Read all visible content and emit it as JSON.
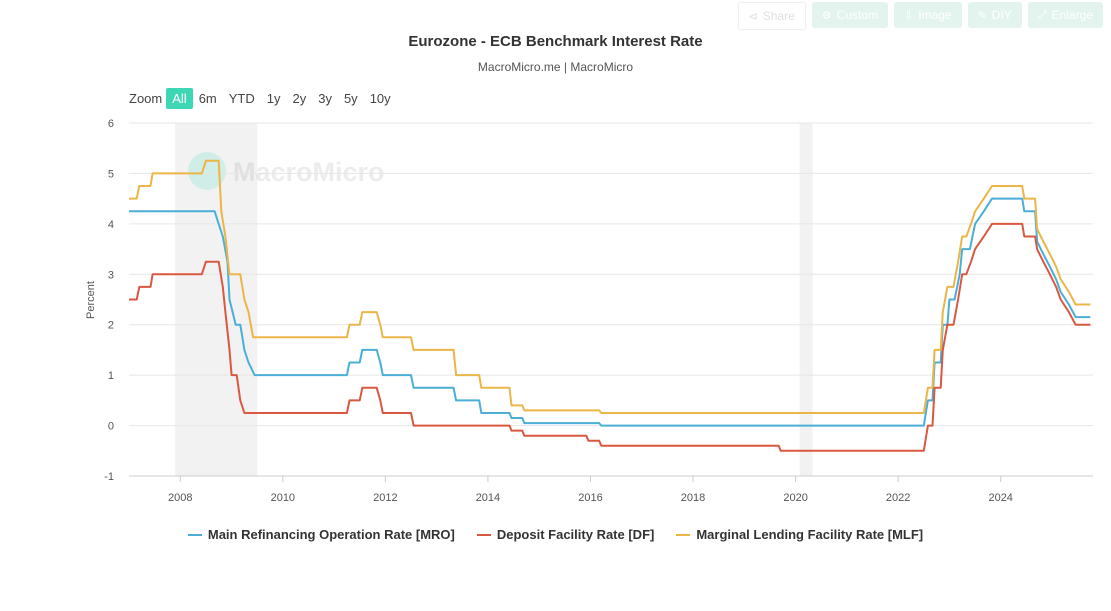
{
  "toolbar": {
    "share": "Share",
    "custom": "Custom",
    "image": "Image",
    "diy": "DIY",
    "enlarge": "Enlarge"
  },
  "zoom": {
    "label": "Zoom",
    "options": [
      "All",
      "6m",
      "YTD",
      "1y",
      "2y",
      "3y",
      "5y",
      "10y"
    ],
    "selected": "All"
  },
  "watermark": "MacroMicro",
  "colors": {
    "mro": "#4aaed6",
    "df": "#d95840",
    "mlf": "#ecb548",
    "recession": "#f2f2f2",
    "accent": "#3fd6b6"
  },
  "chart_data": {
    "type": "line",
    "title": "Eurozone - ECB Benchmark Interest Rate",
    "subtitle": "MacroMicro.me | MacroMicro",
    "ylabel": "Percent",
    "xlabel": "",
    "ylim": [
      -1,
      6
    ],
    "xlim": [
      2007.0,
      2025.8
    ],
    "yticks": [
      "6",
      "5",
      "4",
      "3",
      "2",
      "1",
      "0",
      "-1"
    ],
    "xticks": [
      "2008",
      "2010",
      "2012",
      "2014",
      "2016",
      "2018",
      "2020",
      "2022",
      "2024"
    ],
    "grid": true,
    "legend_position": "bottom",
    "shaded_periods": [
      [
        2007.9,
        2009.5
      ],
      [
        2020.08,
        2020.33
      ]
    ],
    "series": [
      {
        "name": "Main Refinancing Operation Rate [MRO]",
        "color": "#4aaed6",
        "points": [
          [
            2007.0,
            4.25
          ],
          [
            2008.67,
            4.25
          ],
          [
            2008.83,
            3.75
          ],
          [
            2008.92,
            3.25
          ],
          [
            2008.96,
            2.5
          ],
          [
            2009.08,
            2.0
          ],
          [
            2009.17,
            2.0
          ],
          [
            2009.25,
            1.5
          ],
          [
            2009.33,
            1.25
          ],
          [
            2009.45,
            1.0
          ],
          [
            2011.25,
            1.0
          ],
          [
            2011.3,
            1.25
          ],
          [
            2011.5,
            1.25
          ],
          [
            2011.55,
            1.5
          ],
          [
            2011.83,
            1.5
          ],
          [
            2011.9,
            1.25
          ],
          [
            2011.95,
            1.0
          ],
          [
            2012.5,
            1.0
          ],
          [
            2012.55,
            0.75
          ],
          [
            2013.33,
            0.75
          ],
          [
            2013.38,
            0.5
          ],
          [
            2013.83,
            0.5
          ],
          [
            2013.87,
            0.25
          ],
          [
            2014.42,
            0.25
          ],
          [
            2014.46,
            0.15
          ],
          [
            2014.67,
            0.15
          ],
          [
            2014.71,
            0.05
          ],
          [
            2016.17,
            0.05
          ],
          [
            2016.21,
            0.0
          ],
          [
            2022.5,
            0.0
          ],
          [
            2022.58,
            0.5
          ],
          [
            2022.67,
            0.5
          ],
          [
            2022.71,
            1.25
          ],
          [
            2022.83,
            1.25
          ],
          [
            2022.87,
            2.0
          ],
          [
            2022.96,
            2.0
          ],
          [
            2023.0,
            2.5
          ],
          [
            2023.1,
            2.5
          ],
          [
            2023.2,
            3.0
          ],
          [
            2023.25,
            3.5
          ],
          [
            2023.4,
            3.5
          ],
          [
            2023.45,
            3.75
          ],
          [
            2023.5,
            4.0
          ],
          [
            2023.67,
            4.25
          ],
          [
            2023.83,
            4.5
          ],
          [
            2024.42,
            4.5
          ],
          [
            2024.46,
            4.25
          ],
          [
            2024.67,
            4.25
          ],
          [
            2024.71,
            3.65
          ],
          [
            2024.83,
            3.4
          ],
          [
            2024.96,
            3.15
          ],
          [
            2025.08,
            2.9
          ],
          [
            2025.17,
            2.65
          ],
          [
            2025.33,
            2.4
          ],
          [
            2025.46,
            2.15
          ],
          [
            2025.75,
            2.15
          ]
        ]
      },
      {
        "name": "Deposit Facility Rate [DF]",
        "color": "#d95840",
        "points": [
          [
            2007.0,
            2.5
          ],
          [
            2007.15,
            2.5
          ],
          [
            2007.2,
            2.75
          ],
          [
            2007.42,
            2.75
          ],
          [
            2007.46,
            3.0
          ],
          [
            2008.42,
            3.0
          ],
          [
            2008.5,
            3.25
          ],
          [
            2008.75,
            3.25
          ],
          [
            2008.83,
            2.75
          ],
          [
            2008.88,
            2.25
          ],
          [
            2008.96,
            1.5
          ],
          [
            2009.0,
            1.0
          ],
          [
            2009.1,
            1.0
          ],
          [
            2009.17,
            0.5
          ],
          [
            2009.25,
            0.25
          ],
          [
            2011.25,
            0.25
          ],
          [
            2011.3,
            0.5
          ],
          [
            2011.5,
            0.5
          ],
          [
            2011.55,
            0.75
          ],
          [
            2011.83,
            0.75
          ],
          [
            2011.9,
            0.5
          ],
          [
            2011.95,
            0.25
          ],
          [
            2012.5,
            0.25
          ],
          [
            2012.55,
            0.0
          ],
          [
            2014.42,
            0.0
          ],
          [
            2014.46,
            -0.1
          ],
          [
            2014.67,
            -0.1
          ],
          [
            2014.71,
            -0.2
          ],
          [
            2015.92,
            -0.2
          ],
          [
            2015.96,
            -0.3
          ],
          [
            2016.17,
            -0.3
          ],
          [
            2016.21,
            -0.4
          ],
          [
            2019.67,
            -0.4
          ],
          [
            2019.71,
            -0.5
          ],
          [
            2022.5,
            -0.5
          ],
          [
            2022.58,
            0.0
          ],
          [
            2022.67,
            0.0
          ],
          [
            2022.71,
            0.75
          ],
          [
            2022.83,
            0.75
          ],
          [
            2022.87,
            1.5
          ],
          [
            2022.96,
            2.0
          ],
          [
            2023.08,
            2.0
          ],
          [
            2023.17,
            2.5
          ],
          [
            2023.25,
            3.0
          ],
          [
            2023.33,
            3.0
          ],
          [
            2023.42,
            3.25
          ],
          [
            2023.5,
            3.5
          ],
          [
            2023.67,
            3.75
          ],
          [
            2023.83,
            4.0
          ],
          [
            2024.42,
            4.0
          ],
          [
            2024.46,
            3.75
          ],
          [
            2024.67,
            3.75
          ],
          [
            2024.71,
            3.5
          ],
          [
            2024.83,
            3.25
          ],
          [
            2024.96,
            3.0
          ],
          [
            2025.08,
            2.75
          ],
          [
            2025.17,
            2.5
          ],
          [
            2025.33,
            2.25
          ],
          [
            2025.46,
            2.0
          ],
          [
            2025.75,
            2.0
          ]
        ]
      },
      {
        "name": "Marginal Lending Facility Rate [MLF]",
        "color": "#ecb548",
        "points": [
          [
            2007.0,
            4.5
          ],
          [
            2007.15,
            4.5
          ],
          [
            2007.2,
            4.75
          ],
          [
            2007.42,
            4.75
          ],
          [
            2007.46,
            5.0
          ],
          [
            2008.42,
            5.0
          ],
          [
            2008.5,
            5.25
          ],
          [
            2008.75,
            5.25
          ],
          [
            2008.8,
            4.25
          ],
          [
            2008.88,
            3.75
          ],
          [
            2008.96,
            3.0
          ],
          [
            2009.17,
            3.0
          ],
          [
            2009.25,
            2.5
          ],
          [
            2009.33,
            2.25
          ],
          [
            2009.42,
            1.75
          ],
          [
            2011.25,
            1.75
          ],
          [
            2011.3,
            2.0
          ],
          [
            2011.5,
            2.0
          ],
          [
            2011.55,
            2.25
          ],
          [
            2011.83,
            2.25
          ],
          [
            2011.9,
            2.0
          ],
          [
            2011.95,
            1.75
          ],
          [
            2012.5,
            1.75
          ],
          [
            2012.55,
            1.5
          ],
          [
            2013.33,
            1.5
          ],
          [
            2013.38,
            1.0
          ],
          [
            2013.83,
            1.0
          ],
          [
            2013.87,
            0.75
          ],
          [
            2014.42,
            0.75
          ],
          [
            2014.46,
            0.4
          ],
          [
            2014.67,
            0.4
          ],
          [
            2014.71,
            0.3
          ],
          [
            2015.92,
            0.3
          ],
          [
            2016.17,
            0.3
          ],
          [
            2016.21,
            0.25
          ],
          [
            2022.5,
            0.25
          ],
          [
            2022.58,
            0.75
          ],
          [
            2022.67,
            0.75
          ],
          [
            2022.71,
            1.5
          ],
          [
            2022.83,
            1.5
          ],
          [
            2022.87,
            2.25
          ],
          [
            2022.96,
            2.75
          ],
          [
            2023.08,
            2.75
          ],
          [
            2023.17,
            3.25
          ],
          [
            2023.25,
            3.75
          ],
          [
            2023.33,
            3.75
          ],
          [
            2023.42,
            4.0
          ],
          [
            2023.5,
            4.25
          ],
          [
            2023.67,
            4.5
          ],
          [
            2023.83,
            4.75
          ],
          [
            2024.42,
            4.75
          ],
          [
            2024.46,
            4.5
          ],
          [
            2024.67,
            4.5
          ],
          [
            2024.71,
            3.9
          ],
          [
            2024.83,
            3.65
          ],
          [
            2024.96,
            3.4
          ],
          [
            2025.08,
            3.15
          ],
          [
            2025.17,
            2.9
          ],
          [
            2025.33,
            2.65
          ],
          [
            2025.46,
            2.4
          ],
          [
            2025.75,
            2.4
          ]
        ]
      }
    ]
  }
}
